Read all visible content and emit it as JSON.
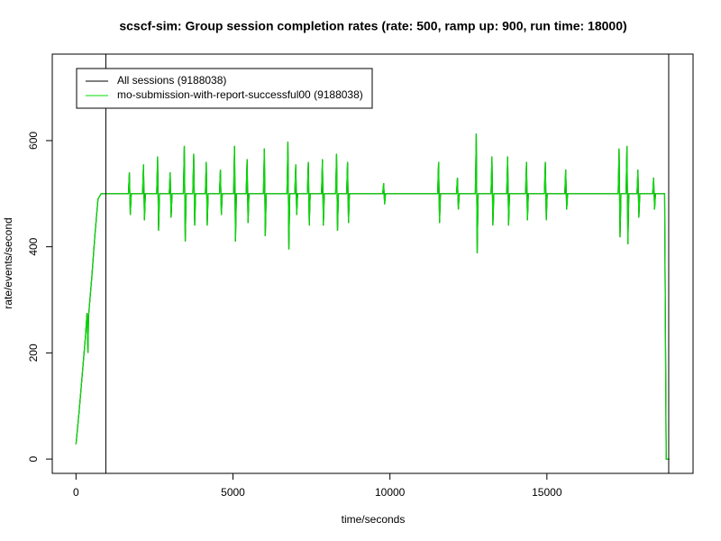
{
  "chart_data": {
    "type": "line",
    "title": "scscf-sim: Group session completion rates (rate: 500, ramp up: 900, run time: 18000)",
    "x_label": "time/seconds",
    "y_label": "rate/events/second",
    "xlim": [
      -756,
      19656
    ],
    "ylim": [
      -27,
      763
    ],
    "xticks": [
      0,
      5000,
      10000,
      15000
    ],
    "yticks": [
      0,
      200,
      400,
      600
    ],
    "vlines": [
      950,
      18880
    ],
    "vline_color": "#000000",
    "legend": "top-left",
    "x": [
      0,
      100,
      200,
      300,
      350,
      380,
      400,
      500,
      600,
      700,
      800,
      1670,
      1700,
      1730,
      1760,
      2120,
      2150,
      2180,
      2210,
      2570,
      2600,
      2630,
      2660,
      2970,
      3000,
      3030,
      3060,
      3420,
      3450,
      3480,
      3510,
      3720,
      3750,
      3780,
      3810,
      4120,
      4150,
      4180,
      4210,
      4570,
      4600,
      4630,
      4660,
      5020,
      5050,
      5080,
      5110,
      5420,
      5450,
      5480,
      5510,
      5970,
      6000,
      6030,
      6060,
      6720,
      6750,
      6780,
      6810,
      6970,
      7000,
      7030,
      7060,
      7370,
      7400,
      7430,
      7460,
      7820,
      7850,
      7880,
      7910,
      8270,
      8300,
      8330,
      8360,
      8620,
      8650,
      8680,
      8710,
      9770,
      9800,
      9830,
      9860,
      11520,
      11550,
      11580,
      11610,
      12120,
      12150,
      12180,
      12210,
      12720,
      12750,
      12780,
      12810,
      13220,
      13250,
      13280,
      13310,
      13720,
      13750,
      13780,
      13810,
      14320,
      14350,
      14380,
      14410,
      14920,
      14950,
      14980,
      15010,
      15570,
      15600,
      15630,
      15660,
      17270,
      17300,
      17330,
      17360,
      17520,
      17550,
      17580,
      17610,
      17870,
      17900,
      17930,
      17960,
      18370,
      18400,
      18430,
      18460,
      18750,
      18800,
      18900
    ],
    "series": [
      {
        "name": "All sessions (9188038)",
        "color": "#000000",
        "values": [
          28,
          90,
          160,
          230,
          275,
          200,
          270,
          340,
          420,
          490,
          500,
          500,
          540,
          460,
          500,
          500,
          555,
          450,
          500,
          500,
          570,
          430,
          500,
          500,
          540,
          455,
          500,
          500,
          590,
          410,
          500,
          500,
          575,
          440,
          500,
          500,
          560,
          440,
          500,
          500,
          545,
          460,
          500,
          500,
          590,
          410,
          500,
          500,
          565,
          445,
          500,
          500,
          585,
          420,
          500,
          500,
          598,
          395,
          500,
          500,
          555,
          460,
          500,
          500,
          560,
          440,
          500,
          500,
          565,
          440,
          500,
          500,
          575,
          430,
          500,
          500,
          560,
          445,
          500,
          500,
          520,
          480,
          500,
          500,
          560,
          445,
          500,
          500,
          530,
          470,
          500,
          500,
          613,
          388,
          500,
          500,
          570,
          440,
          500,
          500,
          570,
          440,
          500,
          500,
          560,
          450,
          500,
          500,
          560,
          450,
          500,
          500,
          545,
          470,
          500,
          500,
          585,
          418,
          500,
          500,
          590,
          405,
          500,
          500,
          545,
          455,
          500,
          500,
          530,
          470,
          500,
          500,
          0,
          0
        ]
      },
      {
        "name": "mo-submission-with-report-successful00 (9188038)",
        "color": "#00dd00",
        "values": [
          28,
          90,
          160,
          230,
          275,
          200,
          270,
          340,
          420,
          490,
          500,
          500,
          540,
          460,
          500,
          500,
          555,
          450,
          500,
          500,
          570,
          430,
          500,
          500,
          540,
          455,
          500,
          500,
          590,
          410,
          500,
          500,
          575,
          440,
          500,
          500,
          560,
          440,
          500,
          500,
          545,
          460,
          500,
          500,
          590,
          410,
          500,
          500,
          565,
          445,
          500,
          500,
          585,
          420,
          500,
          500,
          598,
          395,
          500,
          500,
          555,
          460,
          500,
          500,
          560,
          440,
          500,
          500,
          565,
          440,
          500,
          500,
          575,
          430,
          500,
          500,
          560,
          445,
          500,
          500,
          520,
          480,
          500,
          500,
          560,
          445,
          500,
          500,
          530,
          470,
          500,
          500,
          613,
          388,
          500,
          500,
          570,
          440,
          500,
          500,
          570,
          440,
          500,
          500,
          560,
          450,
          500,
          500,
          560,
          450,
          500,
          500,
          545,
          470,
          500,
          500,
          585,
          418,
          500,
          500,
          590,
          405,
          500,
          500,
          545,
          455,
          500,
          500,
          530,
          470,
          500,
          500,
          0,
          0
        ]
      }
    ]
  }
}
